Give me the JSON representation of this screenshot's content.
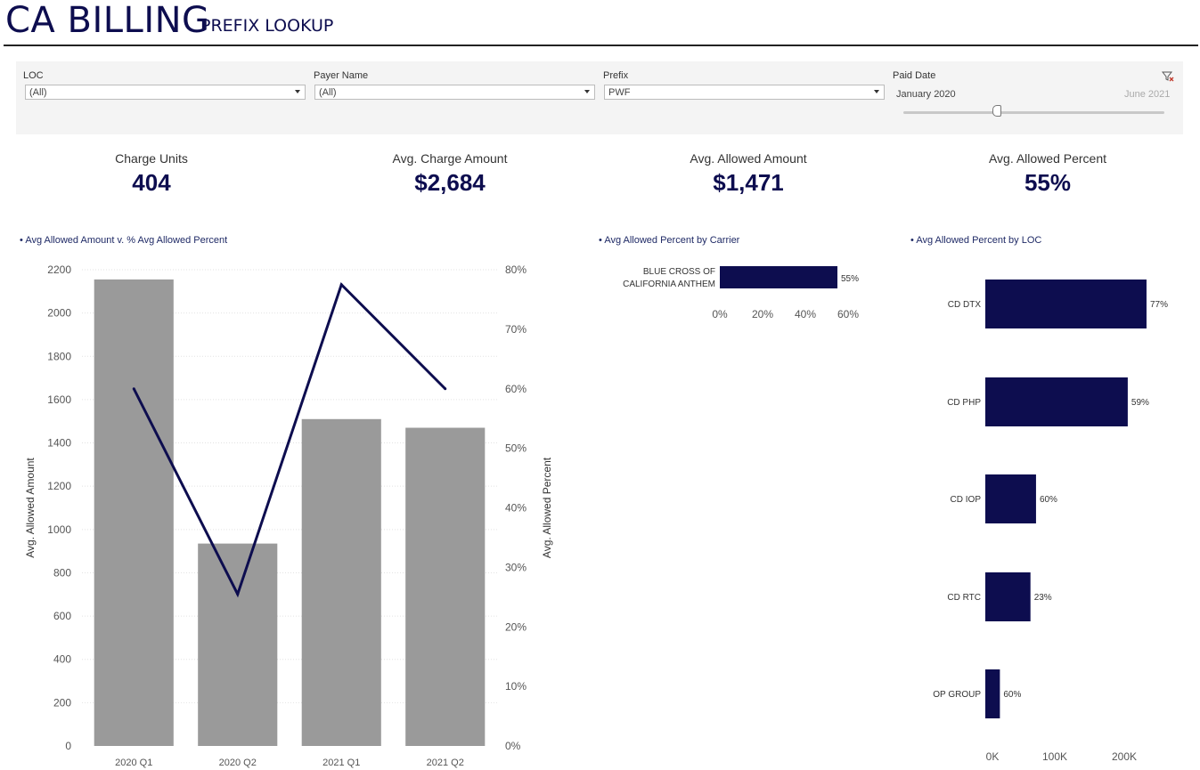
{
  "header": {
    "title": "CA BILLING",
    "subtitle": "PREFIX LOOKUP"
  },
  "filters": {
    "loc": {
      "label": "LOC",
      "value": "(All)"
    },
    "payer": {
      "label": "Payer Name",
      "value": "(All)"
    },
    "prefix": {
      "label": "Prefix",
      "value": "PWF"
    },
    "paid_date": {
      "label": "Paid Date",
      "start": "January 2020",
      "end": "June 2021"
    }
  },
  "kpis": [
    {
      "label": "Charge Units",
      "value": "404"
    },
    {
      "label": "Avg. Charge Amount",
      "value": "$2,684"
    },
    {
      "label": "Avg. Allowed Amount",
      "value": "$1,471"
    },
    {
      "label": "Avg. Allowed Percent",
      "value": "55%"
    }
  ],
  "sheet_titles": {
    "combo": "Avg Allowed Amount v. % Avg Allowed Percent",
    "carrier": "Avg Allowed Percent by Carrier",
    "loc": "Avg Allowed Percent by LOC"
  },
  "colors": {
    "navy": "#0d0d4f",
    "bar_gray": "#9a9a9a",
    "filter_bg": "#f4f4f4"
  },
  "chart_data": [
    {
      "type": "bar+line",
      "title": "Avg Allowed Amount v. % Avg Allowed Percent",
      "categories": [
        "2020 Q1",
        "2020 Q2",
        "2021 Q1",
        "2021 Q2"
      ],
      "series": [
        {
          "name": "Avg. Allowed Amount",
          "type": "bar",
          "axis": "left",
          "values": [
            2155,
            935,
            1510,
            1470
          ]
        },
        {
          "name": "Avg. Allowed Percent",
          "type": "line",
          "axis": "right",
          "values": [
            60,
            25.5,
            77.5,
            60
          ]
        }
      ],
      "ylabel": "Avg. Allowed Amount",
      "ylim": [
        0,
        2200
      ],
      "yticks": [
        "0",
        "200",
        "400",
        "600",
        "800",
        "1000",
        "1200",
        "1400",
        "1600",
        "1800",
        "2000",
        "2200"
      ],
      "y2label": "Avg. Allowed Percent",
      "y2lim": [
        0,
        80
      ],
      "y2ticks": [
        "0%",
        "10%",
        "20%",
        "30%",
        "40%",
        "50%",
        "60%",
        "70%",
        "80%"
      ]
    },
    {
      "type": "bar",
      "orientation": "horizontal",
      "title": "Avg Allowed Percent by Carrier",
      "categories": [
        "BLUE CROSS OF CALIFORNIA ANTHEM"
      ],
      "category_lines": [
        [
          "BLUE CROSS OF",
          "CALIFORNIA ANTHEM"
        ]
      ],
      "values": [
        55
      ],
      "labels": [
        "55%"
      ],
      "xlim": [
        0,
        70
      ],
      "xticks": [
        "0%",
        "20%",
        "40%",
        "60%"
      ]
    },
    {
      "type": "bar",
      "orientation": "horizontal",
      "title": "Avg Allowed Percent by LOC",
      "categories": [
        "CD DTX",
        "CD PHP",
        "CD IOP",
        "CD RTC",
        "OP GROUP"
      ],
      "values": [
        232000,
        205000,
        73000,
        65000,
        21000
      ],
      "labels": [
        "77%",
        "59%",
        "60%",
        "23%",
        "60%"
      ],
      "xlim": [
        0,
        260000
      ],
      "xticks": [
        "0K",
        "100K",
        "200K"
      ]
    }
  ]
}
